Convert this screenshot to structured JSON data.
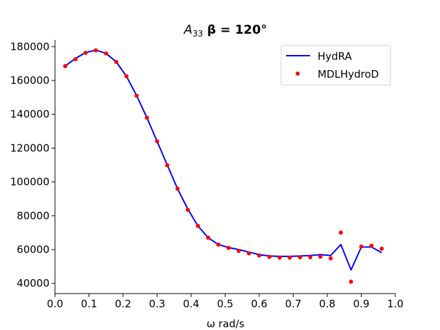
{
  "chart_data": {
    "type": "line",
    "title_math": "A",
    "title_sub": "33",
    "title_rest": "β = 120°",
    "xlabel": "ω rad/s",
    "ylabel": "",
    "xlim": [
      0.0,
      1.0
    ],
    "ylim": [
      34000,
      184000
    ],
    "xticks": [
      0.0,
      0.1,
      0.2,
      0.3,
      0.4,
      0.5,
      0.6,
      0.7,
      0.8,
      0.9,
      1.0
    ],
    "xtick_labels": [
      "0.0",
      "0.1",
      "0.2",
      "0.3",
      "0.4",
      "0.5",
      "0.6",
      "0.7",
      "0.8",
      "0.9",
      "1.0"
    ],
    "yticks": [
      40000,
      60000,
      80000,
      100000,
      120000,
      140000,
      160000,
      180000
    ],
    "ytick_labels": [
      "40000",
      "60000",
      "80000",
      "100000",
      "120000",
      "140000",
      "160000",
      "180000"
    ],
    "grid": false,
    "legend_position": "top-right",
    "series": [
      {
        "name": "HydRA",
        "style": "line",
        "color": "#0000ff",
        "x": [
          0.03,
          0.06,
          0.09,
          0.12,
          0.15,
          0.18,
          0.21,
          0.24,
          0.27,
          0.3,
          0.33,
          0.36,
          0.39,
          0.42,
          0.45,
          0.48,
          0.51,
          0.54,
          0.57,
          0.6,
          0.63,
          0.66,
          0.69,
          0.72,
          0.75,
          0.78,
          0.81,
          0.84,
          0.87,
          0.9,
          0.93,
          0.96
        ],
        "y": [
          168500,
          173000,
          176500,
          178000,
          176000,
          171000,
          162500,
          151000,
          138000,
          124000,
          110000,
          96000,
          84000,
          74000,
          67000,
          63000,
          61200,
          60000,
          58500,
          57000,
          56200,
          56000,
          56000,
          56200,
          56500,
          57000,
          56500,
          63000,
          48000,
          61500,
          61500,
          58200
        ]
      },
      {
        "name": "MDLHydroD",
        "style": "scatter",
        "color": "#ff0000",
        "x": [
          0.03,
          0.06,
          0.09,
          0.12,
          0.15,
          0.18,
          0.21,
          0.24,
          0.27,
          0.3,
          0.33,
          0.36,
          0.39,
          0.42,
          0.45,
          0.48,
          0.51,
          0.54,
          0.57,
          0.6,
          0.63,
          0.66,
          0.69,
          0.72,
          0.75,
          0.78,
          0.81,
          0.84,
          0.87,
          0.9,
          0.93,
          0.96
        ],
        "y": [
          168500,
          172500,
          176300,
          177800,
          176000,
          171000,
          162500,
          151000,
          138000,
          124000,
          109800,
          96000,
          83500,
          74000,
          67000,
          63000,
          61000,
          59200,
          57800,
          56500,
          55700,
          55200,
          55200,
          55500,
          55500,
          55800,
          54800,
          70000,
          41000,
          61800,
          62300,
          60500
        ]
      }
    ]
  }
}
